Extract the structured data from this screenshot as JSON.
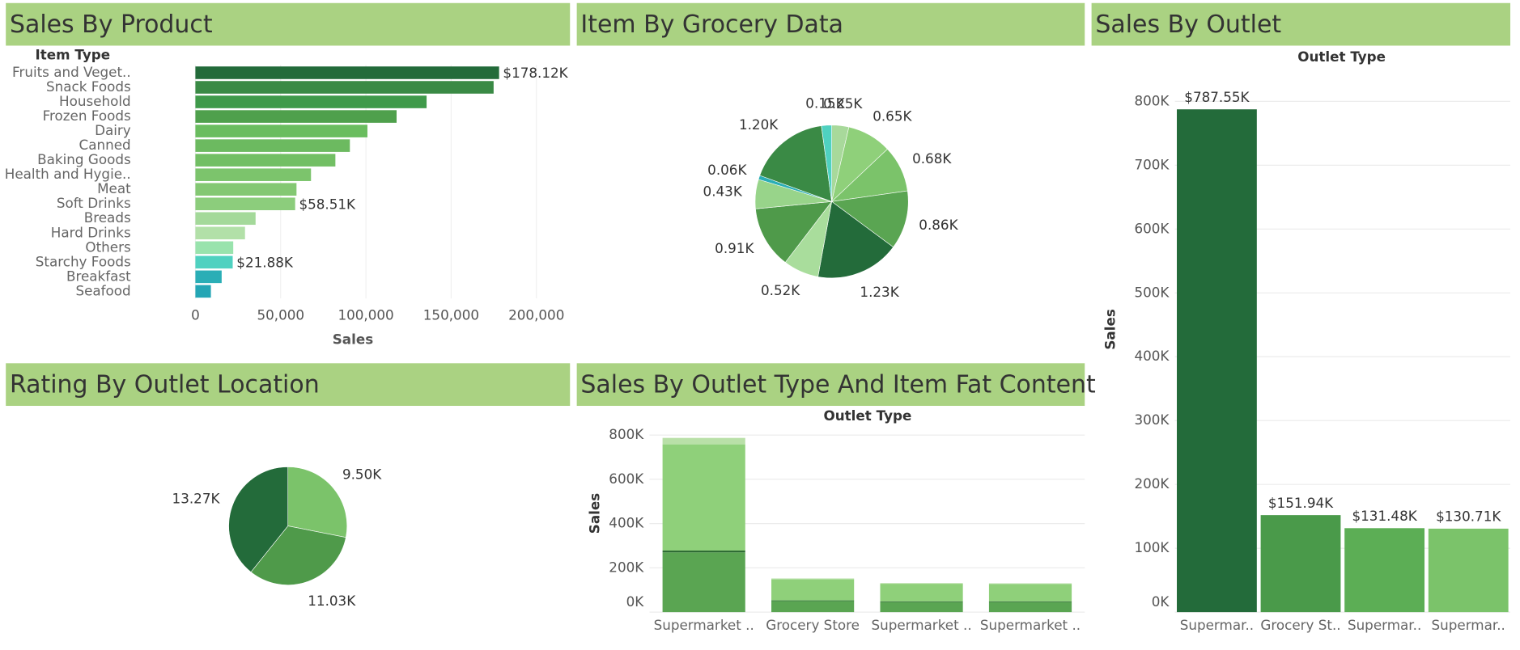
{
  "chart_data": [
    {
      "type": "bar",
      "horizontal": true,
      "title": "Sales By Product",
      "category_header": "Item Type",
      "x_label": "Sales",
      "categories": [
        "Fruits and Veget..",
        "Snack Foods",
        "Household",
        "Frozen Foods",
        "Dairy",
        "Canned",
        "Baking Goods",
        "Health and Hygie..",
        "Meat",
        "Soft Drinks",
        "Breads",
        "Hard Drinks",
        "Others",
        "Starchy Foods",
        "Breakfast",
        "Seafood"
      ],
      "values": [
        178120,
        174900,
        135600,
        118000,
        100900,
        90600,
        82100,
        67800,
        59300,
        58510,
        35300,
        29100,
        22200,
        21880,
        15400,
        9100
      ],
      "value_labels": [
        "$178.12K",
        null,
        null,
        null,
        null,
        null,
        null,
        null,
        null,
        "$58.51K",
        null,
        null,
        null,
        "$21.88K",
        null,
        null
      ],
      "colors": [
        "#236b3a",
        "#3a8a45",
        "#3f9a4a",
        "#4fa04c",
        "#6abd5f",
        "#6cba60",
        "#72bf64",
        "#7cc46c",
        "#84c873",
        "#8ccd7c",
        "#a4d99a",
        "#b2e0a8",
        "#99e3ad",
        "#4fd1c0",
        "#2aaeb6",
        "#24a6b5"
      ],
      "xlim": [
        -35000,
        218000
      ],
      "xticks": [
        0,
        {
          "value": 50000,
          "label": "50,000"
        },
        {
          "value": 100000,
          "label": "100,000"
        },
        {
          "value": 150000,
          "label": "150,000"
        },
        {
          "value": 200000,
          "label": "200,000"
        }
      ],
      "grid": true
    },
    {
      "type": "pie",
      "title": "Item By Grocery Data",
      "values": [
        250,
        650,
        680,
        860,
        1230,
        520,
        910,
        430,
        60,
        1200,
        150
      ],
      "value_labels": [
        "0.25K",
        "0.65K",
        "0.68K",
        "0.86K",
        "1.23K",
        "0.52K",
        "0.91K",
        "0.43K",
        "0.06K",
        "1.20K",
        "0.15K"
      ],
      "colors": [
        "#a8d99b",
        "#8fd07a",
        "#7bc36a",
        "#5aa552",
        "#236b3a",
        "#a9dd9c",
        "#4f9a4a",
        "#98d48a",
        "#2aaeb6",
        "#3a8a45",
        "#4fd1c0"
      ]
    },
    {
      "type": "bar",
      "title": "Sales By Outlet",
      "category_header": "Outlet Type",
      "y_label": "Sales",
      "categories": [
        "Supermar..",
        "Grocery St..",
        "Supermar..",
        "Supermar.."
      ],
      "values": [
        787550,
        151940,
        131480,
        130710
      ],
      "value_labels": [
        "$787.55K",
        "$151.94K",
        "$131.48K",
        "$130.71K"
      ],
      "colors": [
        "#236b3a",
        "#4a9a4a",
        "#5cae55",
        "#7bc36a"
      ],
      "ylim": [
        0,
        860000
      ],
      "yticks": [
        {
          "value": 0,
          "label": "0K"
        },
        {
          "value": 100000,
          "label": "100K"
        },
        {
          "value": 200000,
          "label": "200K"
        },
        {
          "value": 300000,
          "label": "300K"
        },
        {
          "value": 400000,
          "label": "400K"
        },
        {
          "value": 500000,
          "label": "500K"
        },
        {
          "value": 600000,
          "label": "600K"
        },
        {
          "value": 700000,
          "label": "700K"
        },
        {
          "value": 800000,
          "label": "800K"
        }
      ],
      "grid": true
    },
    {
      "type": "pie",
      "title": "Rating By Outlet Location",
      "values": [
        9500,
        11030,
        13270
      ],
      "value_labels": [
        "9.50K",
        "11.03K",
        "13.27K"
      ],
      "colors": [
        "#7bc36a",
        "#4f9a4a",
        "#236b3a"
      ]
    },
    {
      "type": "stacked",
      "title": "Sales By Outlet Type And Item Fat Content",
      "category_header": "Outlet Type",
      "y_label": "Sales",
      "categories": [
        "Supermarket ..",
        "Grocery Store",
        "Supermarket ..",
        "Supermarket .."
      ],
      "series": [
        {
          "color": "#5aa552",
          "values": [
            270000,
            50000,
            45000,
            45000
          ]
        },
        {
          "color": "#2e6b34",
          "values": [
            8000,
            3000,
            3000,
            3000
          ]
        },
        {
          "color": "#8fd07a",
          "values": [
            480000,
            95000,
            80000,
            79000
          ]
        },
        {
          "color": "#b9e0a8",
          "values": [
            29000,
            4000,
            3000,
            3000
          ]
        }
      ],
      "ylim": [
        0,
        840000
      ],
      "yticks": [
        {
          "value": 0,
          "label": "0K"
        },
        {
          "value": 200000,
          "label": "200K"
        },
        {
          "value": 400000,
          "label": "400K"
        },
        {
          "value": 600000,
          "label": "600K"
        },
        {
          "value": 800000,
          "label": "800K"
        }
      ],
      "grid": true
    }
  ]
}
